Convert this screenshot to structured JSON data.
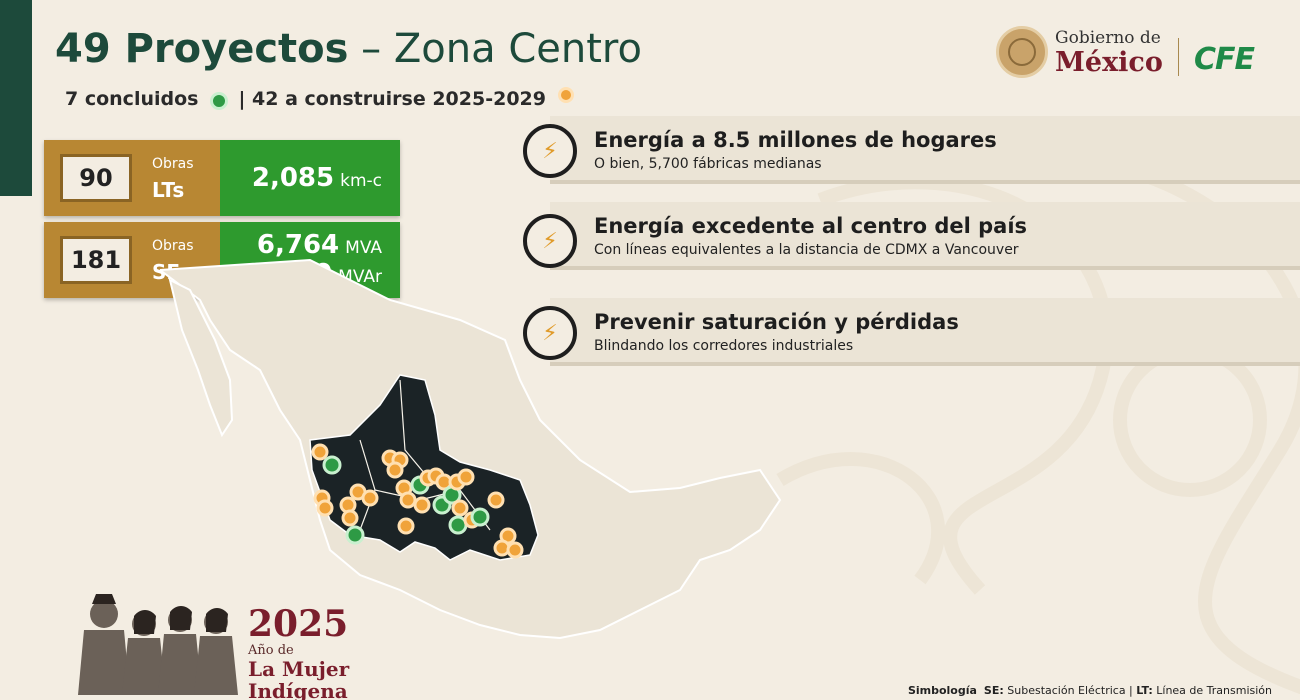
{
  "header": {
    "title_strong": "49 Proyectos",
    "title_light": " – Zona Centro",
    "concluded": "7 concluidos",
    "to_build": "| 42 a construirse 2025-2029"
  },
  "logos": {
    "gobierno_line1": "Gobierno de",
    "gobierno_line2": "México",
    "cfe": "CFE"
  },
  "stats": [
    {
      "count": "90",
      "obras": "Obras",
      "kind": "LTs",
      "measures": [
        {
          "value": "2,085",
          "unit": "km-c"
        }
      ]
    },
    {
      "count": "181",
      "obras": "Obras",
      "kind": "SEs",
      "measures": [
        {
          "value": "6,764",
          "unit": "MVA"
        },
        {
          "value": "2,650",
          "unit": "MVAr"
        }
      ]
    }
  ],
  "cards": [
    {
      "title": "Energía a 8.5 millones de hogares",
      "subtitle": "O bien, 5,700 fábricas medianas",
      "icon": "lightning-icon"
    },
    {
      "title": "Energía excedente al centro del país",
      "subtitle": "Con líneas equivalentes a la distancia de CDMX a Vancouver",
      "icon": "lightning-icon"
    },
    {
      "title": "Prevenir saturación y pérdidas",
      "subtitle": "Blindando los corredores industriales",
      "icon": "lightning-icon"
    }
  ],
  "year_banner": {
    "year": "2025",
    "ano": "Año de",
    "line1": "La Mujer",
    "line2": "Indígena"
  },
  "legend": {
    "heading": "Simbología",
    "se_key": "SE:",
    "se_text": " Subestación Eléctrica",
    "sep": " | ",
    "lt_key": "LT:",
    "lt_text": " Línea de Transmisión"
  },
  "colors": {
    "dark_green": "#1d4a3b",
    "gold": "#b88733",
    "green": "#2e9a2e",
    "maroon": "#7a1e2c",
    "marker_orange": "#f0a33a",
    "marker_green": "#2e9a45"
  }
}
